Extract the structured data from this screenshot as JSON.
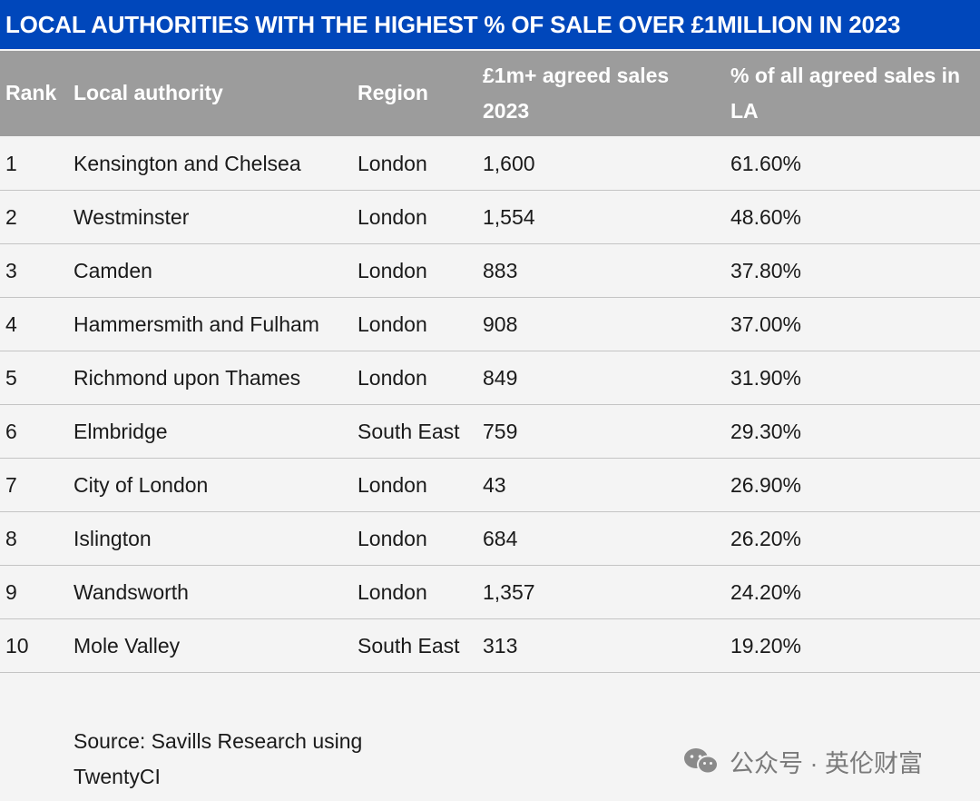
{
  "title": "LOCAL AUTHORITIES WITH THE HIGHEST % OF SALE OVER £1MILLION IN 2023",
  "headers": {
    "rank": "Rank",
    "authority": "Local authority",
    "region": "Region",
    "sales": "£1m+ agreed sales 2023",
    "pct": "% of all agreed sales in LA"
  },
  "rows": [
    {
      "rank": "1",
      "authority": "Kensington and Chelsea",
      "region": "London",
      "sales": "1,600",
      "pct": "61.60%"
    },
    {
      "rank": "2",
      "authority": "Westminster",
      "region": "London",
      "sales": "1,554",
      "pct": "48.60%"
    },
    {
      "rank": "3",
      "authority": "Camden",
      "region": "London",
      "sales": "883",
      "pct": "37.80%"
    },
    {
      "rank": "4",
      "authority": "Hammersmith and Fulham",
      "region": "London",
      "sales": "908",
      "pct": "37.00%"
    },
    {
      "rank": "5",
      "authority": "Richmond upon Thames",
      "region": "London",
      "sales": "849",
      "pct": "31.90%"
    },
    {
      "rank": "6",
      "authority": "Elmbridge",
      "region": "South East",
      "sales": "759",
      "pct": "29.30%"
    },
    {
      "rank": "7",
      "authority": "City of London",
      "region": "London",
      "sales": "43",
      "pct": "26.90%"
    },
    {
      "rank": "8",
      "authority": "Islington",
      "region": "London",
      "sales": "684",
      "pct": "26.20%"
    },
    {
      "rank": "9",
      "authority": "Wandsworth",
      "region": "London",
      "sales": "1,357",
      "pct": "24.20%"
    },
    {
      "rank": "10",
      "authority": "Mole Valley",
      "region": "South East",
      "sales": "313",
      "pct": "19.20%"
    }
  ],
  "source": "Source: Savills Research using TwentyCI",
  "watermark": {
    "text": "公众号 · 英伦财富",
    "icon": "wechat-icon"
  },
  "colors": {
    "title_bg": "#0047bb",
    "header_bg": "#9c9c9c",
    "body_bg": "#f4f4f4",
    "row_border": "#c4c4c4"
  }
}
